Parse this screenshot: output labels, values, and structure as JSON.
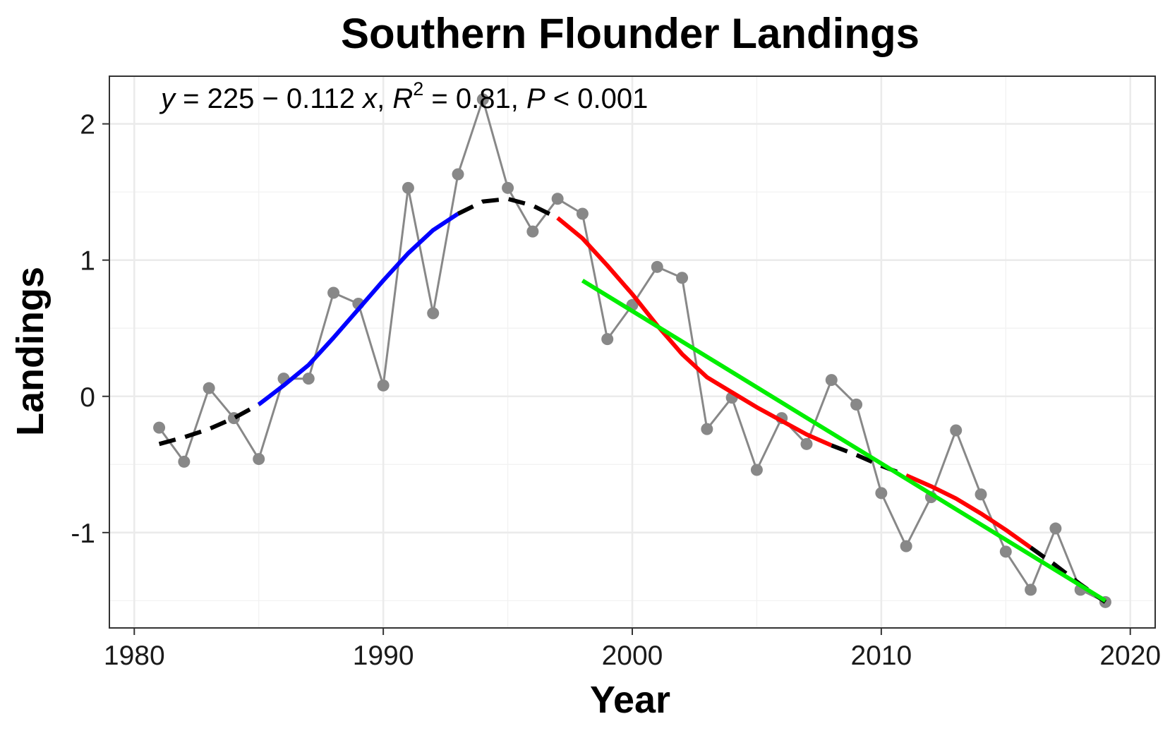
{
  "chart_data": {
    "type": "line",
    "title": "Southern Flounder Landings",
    "xlabel": "Year",
    "ylabel": "Landings",
    "xlim": [
      1979,
      2021
    ],
    "ylim": [
      -1.7,
      2.35
    ],
    "x_ticks": [
      1980,
      1990,
      2000,
      2010,
      2020
    ],
    "x_tick_labels": [
      "1980",
      "1990",
      "2000",
      "2010",
      "2020"
    ],
    "y_ticks": [
      -1,
      0,
      1,
      2
    ],
    "y_tick_labels": [
      "-1",
      "0",
      "1",
      "2"
    ],
    "grid": true,
    "annotation": {
      "y_var": "y",
      "equation": " = 225 − 0.112 ",
      "x_var": "x",
      "sep1": ", ",
      "r_var": "R",
      "r_exp": "2",
      "r_value": " = 0.81, ",
      "p_var": "P",
      "p_value": " < 0.001"
    },
    "colors": {
      "observed": "#888888",
      "increasing": "#0000ff",
      "decreasing": "#ff0000",
      "no_trend": "#000000",
      "linear_fit": "#00ee00"
    },
    "series": [
      {
        "role": "observed",
        "x": [
          1981,
          1982,
          1983,
          1984,
          1985,
          1986,
          1987,
          1988,
          1989,
          1990,
          1991,
          1992,
          1993,
          1994,
          1995,
          1996,
          1997,
          1998,
          1999,
          2000,
          2001,
          2002,
          2003,
          2004,
          2005,
          2006,
          2007,
          2008,
          2009,
          2010,
          2011,
          2012,
          2013,
          2014,
          2015,
          2016,
          2017,
          2018,
          2019
        ],
        "y": [
          -0.23,
          -0.48,
          0.06,
          -0.16,
          -0.46,
          0.13,
          0.13,
          0.76,
          0.68,
          0.08,
          1.53,
          0.61,
          1.63,
          2.18,
          1.53,
          1.21,
          1.45,
          1.34,
          0.42,
          0.67,
          0.95,
          0.87,
          -0.24,
          -0.01,
          -0.54,
          -0.16,
          -0.35,
          0.12,
          -0.06,
          -0.71,
          -1.1,
          -0.74,
          -0.25,
          -0.72,
          -1.14,
          -1.42,
          -0.97,
          -1.42,
          -1.51
        ]
      },
      {
        "role": "smooth",
        "x": [
          1981,
          1982,
          1983,
          1984,
          1985,
          1986,
          1987,
          1988,
          1989,
          1990,
          1991,
          1992,
          1993,
          1994,
          1995,
          1996,
          1997,
          1998,
          1999,
          2000,
          2001,
          2002,
          2003,
          2004,
          2005,
          2006,
          2007,
          2008,
          2009,
          2010,
          2011,
          2012,
          2013,
          2014,
          2015,
          2016,
          2017,
          2018,
          2019
        ],
        "y": [
          -0.35,
          -0.3,
          -0.24,
          -0.16,
          -0.06,
          0.08,
          0.23,
          0.43,
          0.64,
          0.85,
          1.05,
          1.22,
          1.34,
          1.43,
          1.45,
          1.4,
          1.31,
          1.16,
          0.96,
          0.75,
          0.52,
          0.31,
          0.14,
          0.03,
          -0.08,
          -0.18,
          -0.28,
          -0.36,
          -0.43,
          -0.51,
          -0.58,
          -0.66,
          -0.75,
          -0.86,
          -0.98,
          -1.11,
          -1.24,
          -1.38,
          -1.51
        ],
        "segments": [
          {
            "trend": "no_trend",
            "from": 1981,
            "to": 1985
          },
          {
            "trend": "increasing",
            "from": 1985,
            "to": 1993
          },
          {
            "trend": "no_trend",
            "from": 1993,
            "to": 1997
          },
          {
            "trend": "decreasing",
            "from": 1997,
            "to": 2008
          },
          {
            "trend": "no_trend",
            "from": 2008,
            "to": 2011
          },
          {
            "trend": "decreasing",
            "from": 2011,
            "to": 2016
          },
          {
            "trend": "no_trend",
            "from": 2016,
            "to": 2019
          }
        ]
      },
      {
        "role": "linear_fit",
        "x": [
          1998,
          2019
        ],
        "y": [
          0.85,
          -1.5
        ]
      }
    ]
  }
}
